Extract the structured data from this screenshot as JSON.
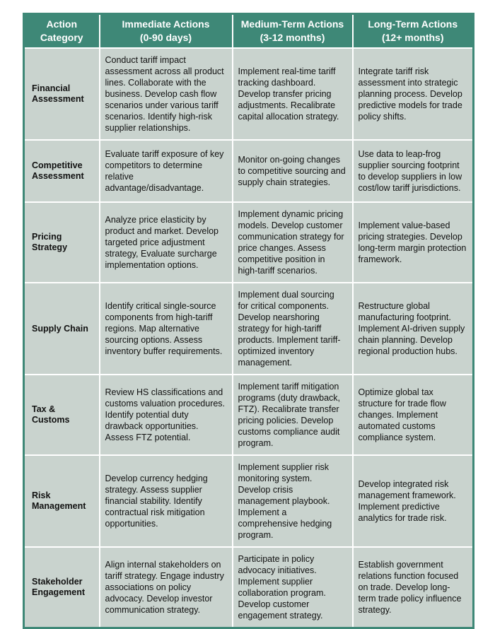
{
  "colors": {
    "header_bg": "#3e8877",
    "cell_bg": "#c9d3ce",
    "border": "#3e8877",
    "divider": "#ffffff"
  },
  "table": {
    "headers": [
      {
        "line1": "Action",
        "line2": "Category"
      },
      {
        "line1": "Immediate Actions",
        "line2": "(0-90 days)"
      },
      {
        "line1": "Medium-Term Actions",
        "line2": "(3-12 months)"
      },
      {
        "line1": "Long-Term Actions",
        "line2": "(12+ months)"
      }
    ],
    "rows": [
      {
        "category": "Financial Assessment",
        "immediate": "Conduct tariff impact assessment across all product lines.  Collaborate with the business. Develop cash flow scenarios under various tariff scenarios. Identify high-risk supplier relationships.",
        "medium": "Implement real-time tariff tracking dashboard. Develop transfer pricing adjustments. Recalibrate capital allocation strategy.",
        "long": "Integrate tariff risk assessment into strategic planning process. Develop predictive models for trade policy shifts."
      },
      {
        "category": "Competitive Assessment",
        "immediate": "Evaluate tariff exposure of key competitors to determine relative advantage/disadvantage.",
        "medium": "Monitor on-going changes to competitive sourcing and supply chain strategies.",
        "long": "Use data to leap-frog supplier sourcing footprint to develop suppliers in low cost/low tariff jurisdictions."
      },
      {
        "category": "Pricing Strategy",
        "immediate": "Analyze price elasticity by product and market. Develop targeted price adjustment strategy, Evaluate surcharge implementation options.",
        "medium": "Implement dynamic pricing models. Develop customer communication strategy for price changes. Assess competitive position in high-tariff scenarios.",
        "long": "Implement value-based pricing strategies. Develop long-term margin protection framework."
      },
      {
        "category": "Supply Chain",
        "immediate": "Identify critical single-source components from high-tariff regions. Map alternative sourcing options.  Assess inventory buffer requirements.",
        "medium": "Implement dual sourcing for critical components. Develop nearshoring strategy for high-tariff products. Implement tariff-optimized inventory management.",
        "long": "Restructure global manufacturing footprint. Implement AI-driven supply chain planning. Develop regional production hubs."
      },
      {
        "category": "Tax & Customs",
        "immediate": "Review HS classifications and customs valuation procedures. Identify potential duty drawback opportunities. Assess FTZ potential.",
        "medium": "Implement tariff mitigation programs (duty drawback, FTZ). Recalibrate transfer pricing policies. Develop customs compliance audit program.",
        "long": "Optimize global tax structure for trade flow changes. Implement automated customs compliance system."
      },
      {
        "category": "Risk Management",
        "immediate": "Develop currency hedging strategy. Assess supplier financial stability. Identify contractual risk mitigation opportunities.",
        "medium": "Implement supplier risk monitoring system. Develop crisis management playbook. Implement a comprehensive hedging program.",
        "long": "Develop integrated risk management framework. Implement predictive analytics for trade risk."
      },
      {
        "category": "Stakeholder Engagement",
        "immediate": "Align internal stakeholders on tariff strategy. Engage industry associations on policy advocacy. Develop investor communication strategy.",
        "medium": "Participate in policy advocacy initiatives. Implement supplier collaboration program. Develop customer engagement strategy.",
        "long": "Establish government relations function focused on trade. Develop long-term trade policy influence strategy."
      }
    ]
  }
}
